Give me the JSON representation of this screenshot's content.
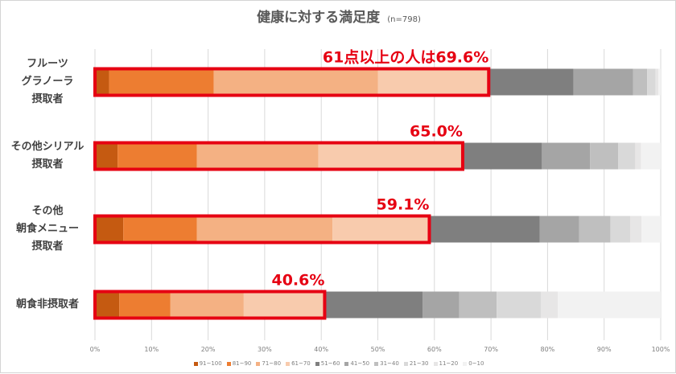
{
  "chart_data": {
    "type": "bar",
    "orientation": "horizontal-stacked-100",
    "title": "健康に対する満足度",
    "note": "(n=798)",
    "categories": [
      [
        "フルーツ",
        "グラノーラ",
        "摂取者"
      ],
      [
        "その他シリアル",
        "摂取者"
      ],
      [
        "その他",
        "朝食メニュー",
        "摂取者"
      ],
      [
        "朝食非摂取者"
      ]
    ],
    "series": [
      {
        "name": "91~100",
        "color": "#c55a11",
        "values": [
          2.5,
          4.0,
          5.0,
          4.3
        ]
      },
      {
        "name": "81~90",
        "color": "#ed7d31",
        "values": [
          18.5,
          14.0,
          13.0,
          9.0
        ]
      },
      {
        "name": "71~80",
        "color": "#f4b183",
        "values": [
          29.0,
          21.5,
          24.0,
          13.0
        ]
      },
      {
        "name": "61~70",
        "color": "#f8cbad",
        "values": [
          19.6,
          25.5,
          17.1,
          14.3
        ]
      },
      {
        "name": "51~60",
        "color": "#7f7f7f",
        "values": [
          15.0,
          14.0,
          19.5,
          17.3
        ]
      },
      {
        "name": "41~50",
        "color": "#a5a5a5",
        "values": [
          10.5,
          8.5,
          7.0,
          6.5
        ]
      },
      {
        "name": "31~40",
        "color": "#bfbfbf",
        "values": [
          2.5,
          5.0,
          5.5,
          6.6
        ]
      },
      {
        "name": "21~30",
        "color": "#d9d9d9",
        "values": [
          1.5,
          3.0,
          3.5,
          7.8
        ]
      },
      {
        "name": "11~20",
        "color": "#e7e6e6",
        "values": [
          0.5,
          1.0,
          2.0,
          3.0
        ]
      },
      {
        "name": "0~10",
        "color": "#f2f2f2",
        "values": [
          0.4,
          3.5,
          3.4,
          18.2
        ]
      }
    ],
    "highlight": {
      "color": "#e60012",
      "labels": [
        "61点以上の人は69.6%",
        "65.0%",
        "59.1%",
        "40.6%"
      ],
      "values": [
        69.6,
        65.0,
        59.1,
        40.6
      ]
    },
    "x_ticks": [
      "0%",
      "10%",
      "20%",
      "30%",
      "40%",
      "50%",
      "60%",
      "70%",
      "80%",
      "90%",
      "100%"
    ],
    "xlim": [
      0,
      100
    ],
    "grid": true,
    "legend_position": "bottom"
  }
}
